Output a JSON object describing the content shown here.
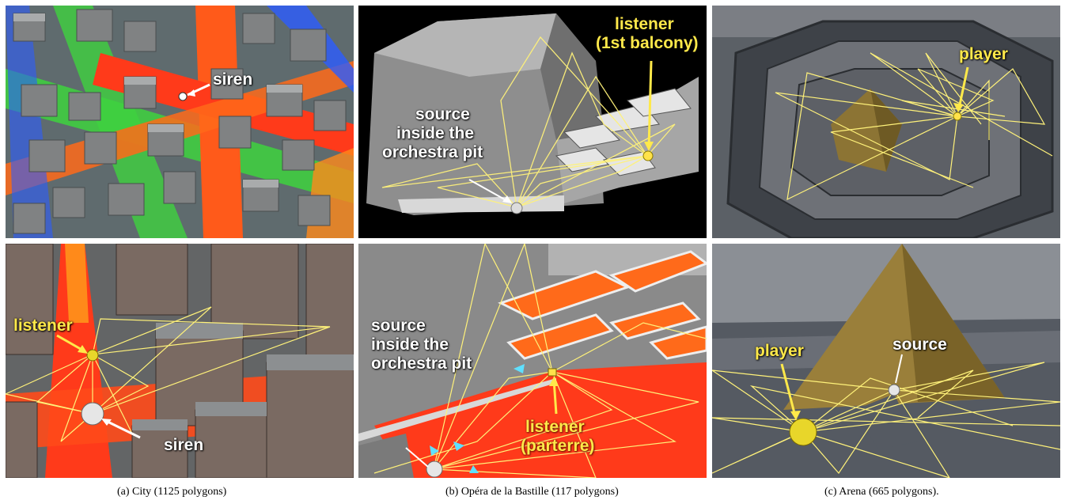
{
  "panels": {
    "city_top": {
      "labels": {
        "siren": "siren"
      }
    },
    "opera_top": {
      "labels": {
        "listener_line1": "listener",
        "listener_line2": "(1st balcony)",
        "source_line1": "source",
        "source_line2": "inside the",
        "source_line3": "orchestra pit"
      }
    },
    "arena_top": {
      "labels": {
        "player": "player"
      }
    },
    "city_bottom": {
      "labels": {
        "listener": "listener",
        "siren": "siren"
      }
    },
    "opera_bottom": {
      "labels": {
        "source_line1": "source",
        "source_line2": "inside the",
        "source_line3": "orchestra pit",
        "listener_line1": "listener",
        "listener_line2": "(parterre)"
      }
    },
    "arena_bottom": {
      "labels": {
        "player": "player",
        "source": "source"
      }
    }
  },
  "captions": {
    "a": "(a) City (1125 polygons)",
    "b": "(b) Opéra de la Bastille (117 polygons)",
    "c": "(c) Arena (665 polygons)."
  },
  "colors": {
    "path_lines": "#fff27a",
    "label_white": "#ffffff",
    "label_yellow": "#ffe94a",
    "heat_red": "#ff3a1a",
    "heat_green": "#3ed23e",
    "heat_blue": "#2c5cff"
  }
}
